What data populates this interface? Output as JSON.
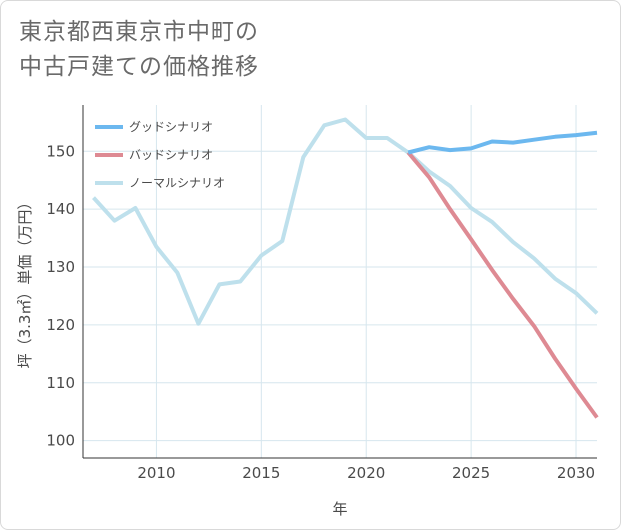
{
  "title_lines": [
    "東京都西東京市中町の",
    "中古戸建ての価格推移"
  ],
  "chart_data": {
    "type": "line",
    "title": "東京都西東京市中町の中古戸建ての価格推移",
    "xlabel": "年",
    "ylabel": "坪（3.3㎡）単価（万円）",
    "xlim": [
      2006.5,
      2031
    ],
    "ylim": [
      97,
      158
    ],
    "x_ticks": [
      2010,
      2015,
      2020,
      2025,
      2030
    ],
    "y_ticks": [
      100,
      110,
      120,
      130,
      140,
      150
    ],
    "grid": true,
    "legend_position": "top-left",
    "series": [
      {
        "name": "グッドシナリオ",
        "color": "#6cb8ef",
        "x": [
          2022,
          2023,
          2024,
          2025,
          2026,
          2027,
          2028,
          2029,
          2030,
          2031
        ],
        "values": [
          149.8,
          150.7,
          150.2,
          150.5,
          151.7,
          151.5,
          152.0,
          152.5,
          152.8,
          153.2
        ]
      },
      {
        "name": "バッドシナリオ",
        "color": "#de8a93",
        "x": [
          2022,
          2023,
          2024,
          2025,
          2026,
          2027,
          2028,
          2029,
          2030,
          2031
        ],
        "values": [
          149.8,
          145.5,
          140.0,
          134.8,
          129.5,
          124.5,
          119.8,
          114.2,
          109.0,
          104.0
        ]
      },
      {
        "name": "ノーマルシナリオ",
        "color": "#bee0ec",
        "x": [
          2007,
          2008,
          2009,
          2010,
          2011,
          2012,
          2013,
          2014,
          2015,
          2016,
          2017,
          2018,
          2019,
          2020,
          2021,
          2022,
          2023,
          2024,
          2025,
          2026,
          2027,
          2028,
          2029,
          2030,
          2031
        ],
        "values": [
          142.0,
          138.0,
          140.2,
          133.5,
          129.0,
          120.2,
          127.0,
          127.5,
          132.0,
          134.5,
          149.0,
          154.5,
          155.5,
          152.3,
          152.3,
          149.8,
          146.5,
          144.0,
          140.2,
          137.8,
          134.3,
          131.5,
          128.0,
          125.5,
          122.0
        ]
      }
    ]
  }
}
